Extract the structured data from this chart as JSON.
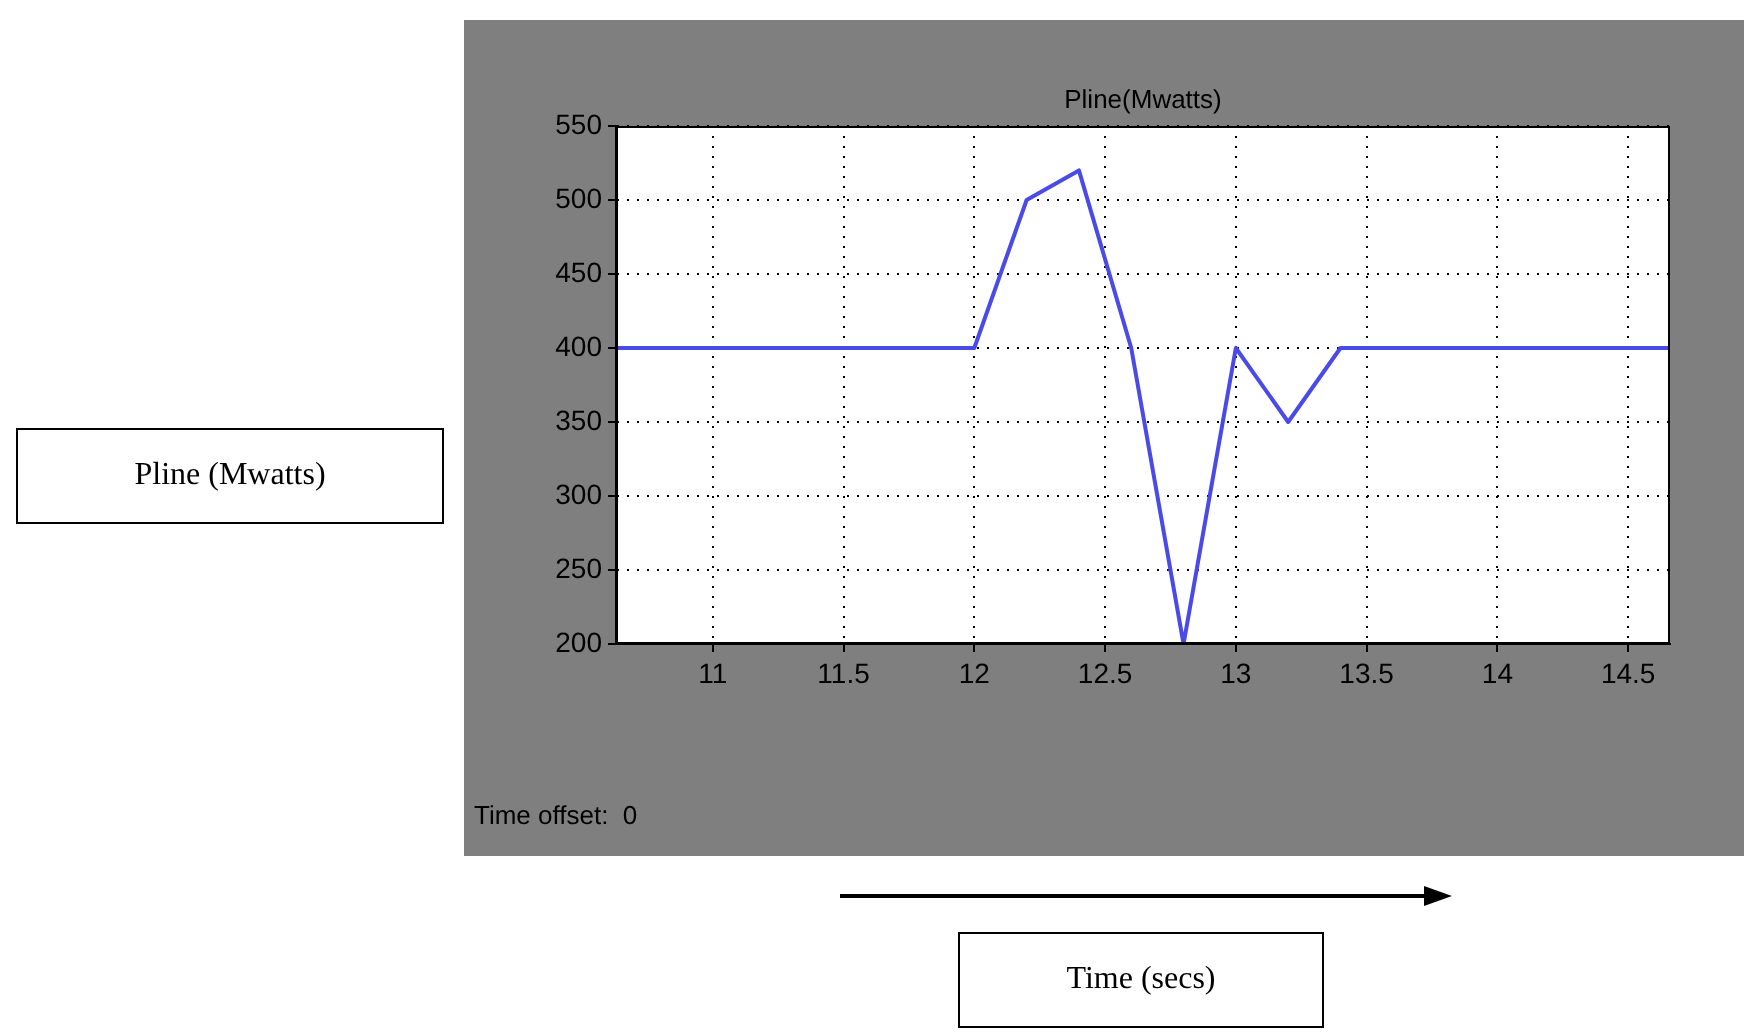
{
  "chart_data": {
    "type": "line",
    "title": "Pline(Mwatts)",
    "annotations": [
      "Time offset:  0",
      "Pline (Mwatts)",
      "Time (secs)"
    ],
    "x": [
      10.63,
      12,
      12.2,
      12.4,
      12.6,
      12.8,
      13,
      13.2,
      13.4,
      14.66
    ],
    "series": [
      {
        "color": "#4a4ae8",
        "values": [
          400,
          400,
          500,
          520,
          400,
          200,
          400,
          350,
          400,
          400
        ]
      }
    ],
    "xlim": [
      10.63,
      14.66
    ],
    "xticks": [
      11,
      11.5,
      12,
      12.5,
      13,
      13.5,
      14,
      14.5
    ],
    "ylim": [
      200,
      550
    ],
    "yticks": [
      200,
      250,
      300,
      350,
      400,
      450,
      500,
      550
    ],
    "grid": true,
    "legend": false,
    "marker": "none",
    "line_style": "solid"
  }
}
